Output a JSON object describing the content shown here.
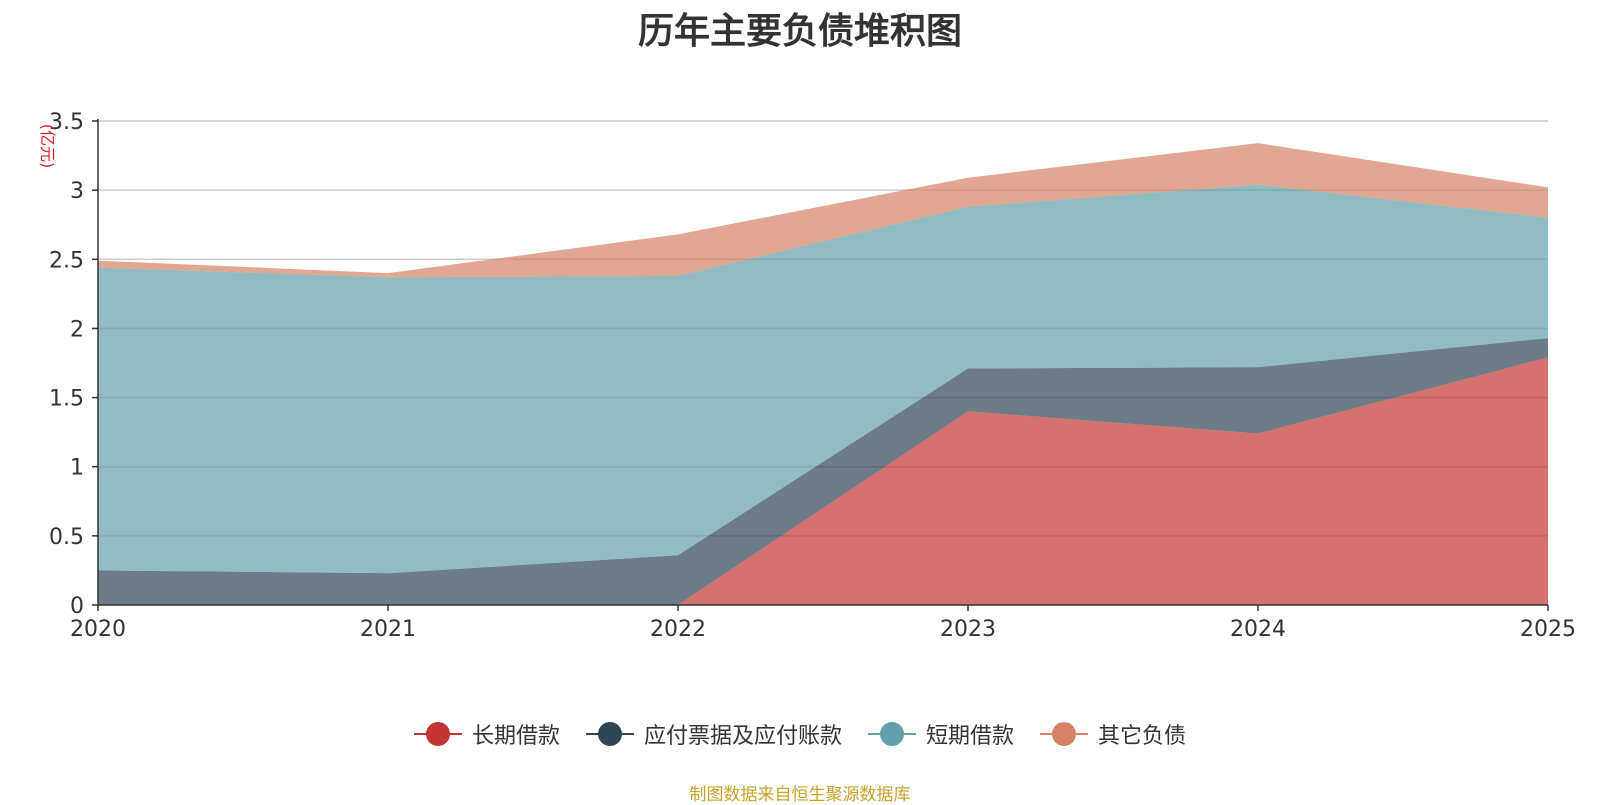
{
  "chart_data": {
    "type": "area",
    "stacked": true,
    "title": "历年主要负债堆积图",
    "unit_label": "(亿元)",
    "x": [
      "2020",
      "2021",
      "2022",
      "2023",
      "2024",
      "2025"
    ],
    "ylim": [
      0,
      3.5
    ],
    "yticks": [
      "0",
      "0.5",
      "1",
      "1.5",
      "2",
      "2.5",
      "3",
      "3.5"
    ],
    "grid": true,
    "legend_position": "bottom",
    "series": [
      {
        "name": "长期借款",
        "color": "#c23531",
        "values": [
          0,
          0,
          0,
          1.4,
          1.24,
          1.79
        ]
      },
      {
        "name": "应付票据及应付账款",
        "color": "#2f4554",
        "values": [
          0.25,
          0.23,
          0.36,
          0.31,
          0.48,
          0.14
        ]
      },
      {
        "name": "短期借款",
        "color": "#61a0a8",
        "values": [
          2.19,
          2.14,
          2.02,
          1.17,
          1.32,
          0.87
        ]
      },
      {
        "name": "其它负债",
        "color": "#d48265",
        "values": [
          0.05,
          0.03,
          0.3,
          0.21,
          0.3,
          0.22
        ]
      }
    ],
    "source_note": "制图数据来自恒生聚源数据库"
  }
}
